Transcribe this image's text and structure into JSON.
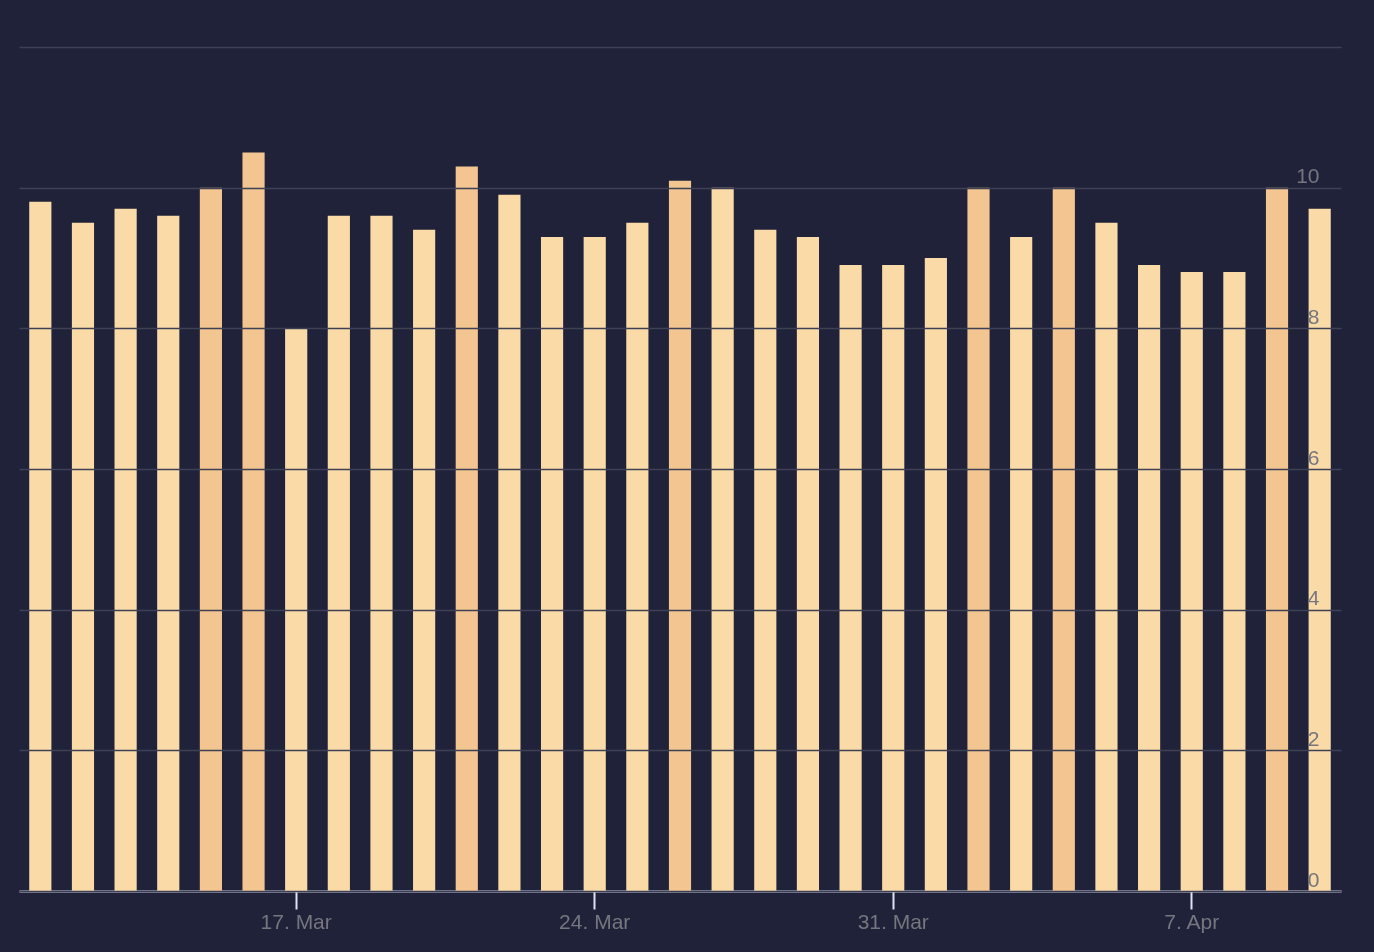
{
  "chart_data": {
    "type": "bar",
    "categories": [
      null,
      null,
      null,
      null,
      null,
      null,
      "17. Mar",
      null,
      null,
      null,
      null,
      null,
      null,
      "24. Mar",
      null,
      null,
      null,
      null,
      null,
      null,
      "31. Mar",
      null,
      null,
      null,
      null,
      null,
      null,
      "7. Apr",
      null,
      null,
      null
    ],
    "values": [
      9.8,
      9.5,
      9.7,
      9.6,
      10.0,
      10.5,
      8.0,
      9.6,
      9.6,
      9.4,
      10.3,
      9.9,
      9.3,
      9.3,
      9.5,
      10.1,
      10.0,
      9.4,
      9.3,
      8.9,
      8.9,
      9.0,
      10.0,
      9.3,
      10.0,
      9.5,
      8.9,
      8.8,
      8.8,
      10.0,
      9.7
    ],
    "colors": [
      "#fadba8",
      "#fadba8",
      "#fadba8",
      "#fadba8",
      "#f2c591",
      "#f2c591",
      "#fadba8",
      "#fadba8",
      "#fadba8",
      "#fadba8",
      "#f2c591",
      "#fadba8",
      "#fadba8",
      "#fadba8",
      "#fadba8",
      "#f2c591",
      "#fadba8",
      "#fadba8",
      "#fadba8",
      "#fadba8",
      "#fadba8",
      "#fadba8",
      "#f2c591",
      "#fadba8",
      "#f2c591",
      "#fadba8",
      "#fadba8",
      "#fadba8",
      "#fadba8",
      "#f2c591",
      "#fadba8"
    ],
    "ylim": [
      0,
      12
    ],
    "yticks": [
      0,
      2,
      4,
      6,
      8,
      10,
      {
        "value": 12,
        "label": null
      }
    ],
    "grid": "y"
  }
}
